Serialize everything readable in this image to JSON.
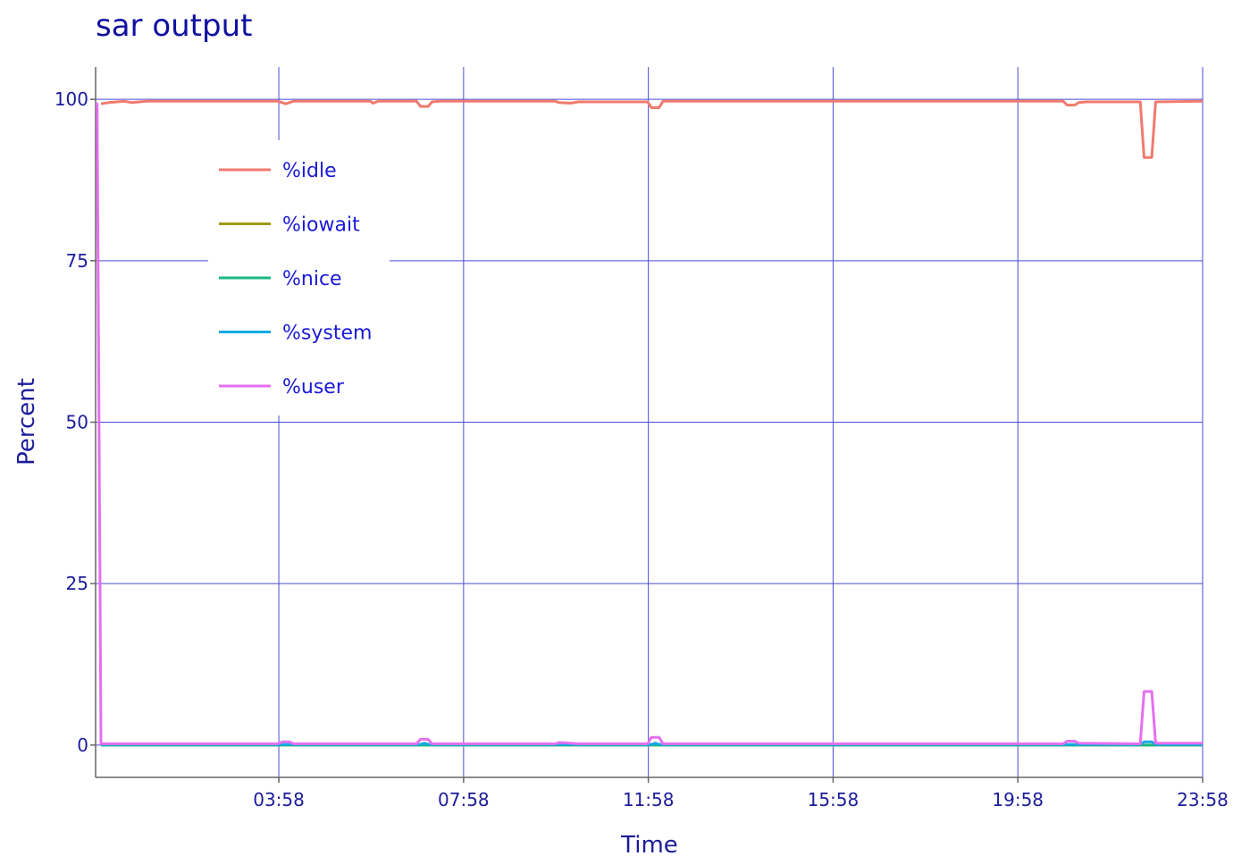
{
  "chart_data": {
    "type": "line",
    "title": "sar output",
    "xlabel": "Time",
    "ylabel": "Percent",
    "xlim": [
      "00:00",
      "23:58"
    ],
    "ylim": [
      -5,
      105
    ],
    "x_ticks": [
      "03:58",
      "07:58",
      "11:58",
      "15:58",
      "19:58",
      "23:58"
    ],
    "y_ticks": [
      0,
      25,
      50,
      75,
      100
    ],
    "grid": true,
    "legend_position": "top-left",
    "series": [
      {
        "name": "%idle",
        "color": "#f07a6e",
        "points": [
          [
            "00:07",
            99.3
          ],
          [
            "00:17",
            99.5
          ],
          [
            "00:37",
            99.7
          ],
          [
            "00:47",
            99.5
          ],
          [
            "01:07",
            99.7
          ],
          [
            "03:57",
            99.7
          ],
          [
            "04:07",
            99.3
          ],
          [
            "04:17",
            99.7
          ],
          [
            "05:57",
            99.7
          ],
          [
            "06:00",
            99.4
          ],
          [
            "06:07",
            99.7
          ],
          [
            "06:57",
            99.7
          ],
          [
            "07:02",
            98.9
          ],
          [
            "07:12",
            98.9
          ],
          [
            "07:17",
            99.6
          ],
          [
            "07:27",
            99.7
          ],
          [
            "09:57",
            99.7
          ],
          [
            "10:02",
            99.5
          ],
          [
            "10:17",
            99.4
          ],
          [
            "10:27",
            99.6
          ],
          [
            "11:57",
            99.6
          ],
          [
            "12:02",
            98.7
          ],
          [
            "12:12",
            98.7
          ],
          [
            "12:17",
            99.7
          ],
          [
            "20:57",
            99.7
          ],
          [
            "21:02",
            99.1
          ],
          [
            "21:12",
            99.1
          ],
          [
            "21:17",
            99.5
          ],
          [
            "21:27",
            99.6
          ],
          [
            "22:37",
            99.6
          ],
          [
            "22:42",
            91.0
          ],
          [
            "22:52",
            91.0
          ],
          [
            "22:57",
            99.6
          ],
          [
            "23:58",
            99.7
          ]
        ]
      },
      {
        "name": "%iowait",
        "color": "#9e9a16",
        "points": [
          [
            "00:07",
            0.0
          ],
          [
            "23:58",
            0.0
          ]
        ]
      },
      {
        "name": "%nice",
        "color": "#1ab981",
        "points": [
          [
            "00:07",
            0.0
          ],
          [
            "23:58",
            0.0
          ]
        ]
      },
      {
        "name": "%system",
        "color": "#14a9e6",
        "points": [
          [
            "00:07",
            0.1
          ],
          [
            "07:02",
            0.1
          ],
          [
            "07:07",
            0.3
          ],
          [
            "07:12",
            0.1
          ],
          [
            "12:02",
            0.1
          ],
          [
            "12:07",
            0.3
          ],
          [
            "12:12",
            0.1
          ],
          [
            "22:37",
            0.1
          ],
          [
            "22:42",
            0.5
          ],
          [
            "22:52",
            0.5
          ],
          [
            "22:57",
            0.1
          ],
          [
            "23:58",
            0.1
          ]
        ]
      },
      {
        "name": "%user",
        "color": "#e56ff0",
        "points": [
          [
            "00:00",
            99.3
          ],
          [
            "00:02",
            99.3
          ],
          [
            "00:07",
            0.2
          ],
          [
            "03:57",
            0.2
          ],
          [
            "04:02",
            0.5
          ],
          [
            "04:12",
            0.5
          ],
          [
            "04:17",
            0.2
          ],
          [
            "06:57",
            0.2
          ],
          [
            "07:02",
            0.9
          ],
          [
            "07:12",
            0.9
          ],
          [
            "07:17",
            0.2
          ],
          [
            "09:57",
            0.2
          ],
          [
            "10:02",
            0.4
          ],
          [
            "10:17",
            0.3
          ],
          [
            "10:27",
            0.2
          ],
          [
            "11:57",
            0.2
          ],
          [
            "12:02",
            1.2
          ],
          [
            "12:12",
            1.2
          ],
          [
            "12:17",
            0.2
          ],
          [
            "20:57",
            0.2
          ],
          [
            "21:02",
            0.6
          ],
          [
            "21:12",
            0.6
          ],
          [
            "21:17",
            0.3
          ],
          [
            "22:37",
            0.2
          ],
          [
            "22:42",
            8.3
          ],
          [
            "22:52",
            8.3
          ],
          [
            "22:57",
            0.3
          ],
          [
            "23:58",
            0.3
          ]
        ]
      }
    ]
  }
}
